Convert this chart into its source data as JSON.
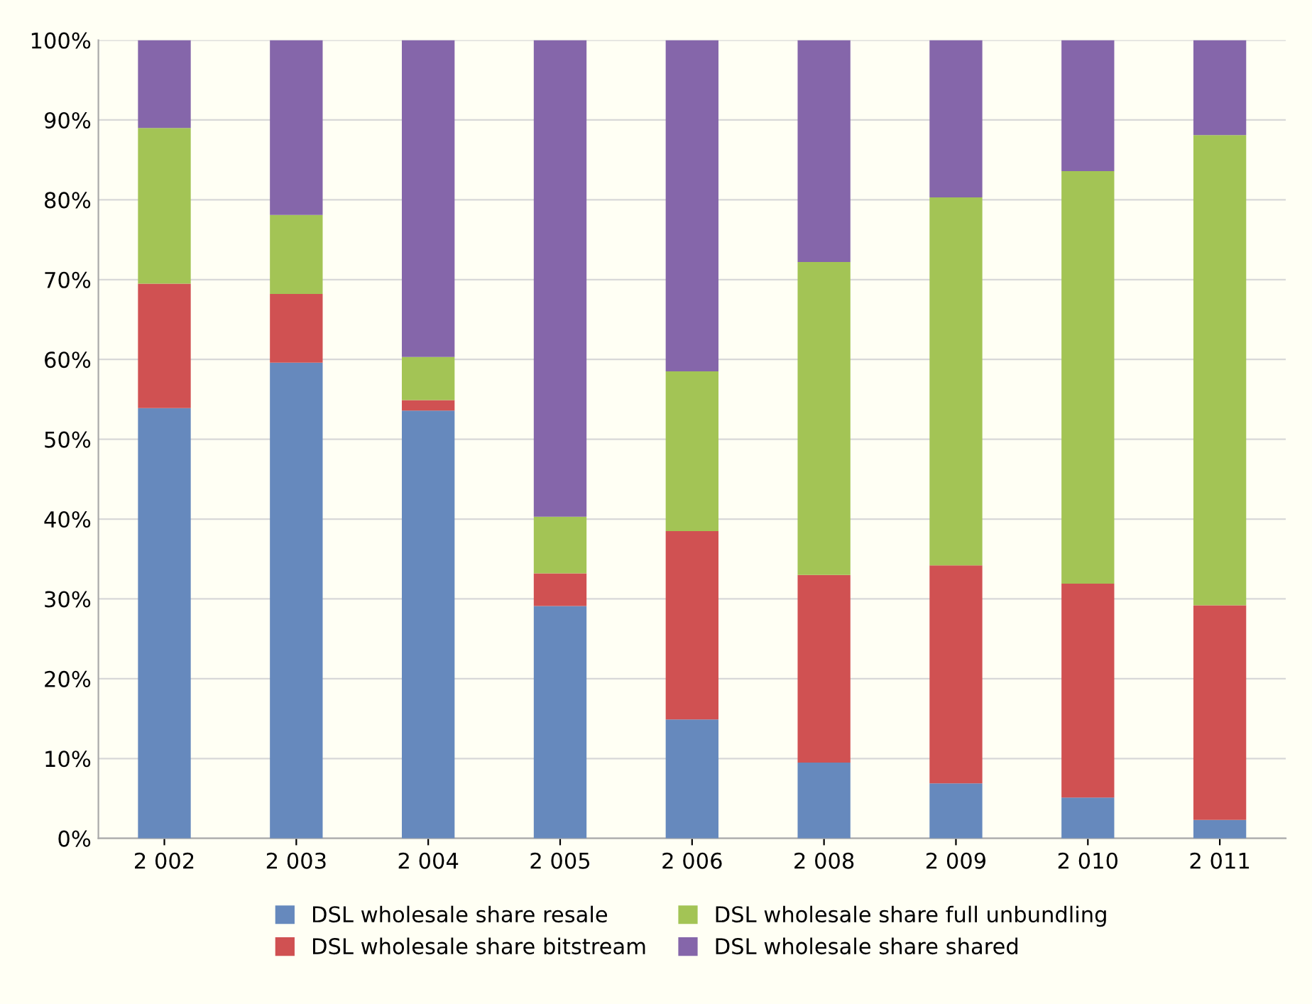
{
  "chart_data": {
    "type": "bar",
    "stacked": true,
    "categories": [
      "2 002",
      "2 003",
      "2 004",
      "2 005",
      "2 006",
      "2 008",
      "2 009",
      "2 010",
      "2 011"
    ],
    "series": [
      {
        "name": "DSL wholesale share resale",
        "color": "#6689bd",
        "values": [
          53.9,
          59.6,
          53.6,
          29.1,
          14.9,
          9.5,
          6.9,
          5.1,
          2.3
        ]
      },
      {
        "name": "DSL wholesale share bitstream",
        "color": "#d05152",
        "values": [
          15.6,
          8.6,
          1.3,
          4.1,
          23.6,
          23.5,
          27.3,
          26.8,
          26.9
        ]
      },
      {
        "name": "DSL wholesale share full unbundling",
        "color": "#a3c455",
        "values": [
          19.5,
          9.9,
          5.4,
          7.1,
          20.0,
          39.2,
          46.1,
          51.7,
          58.9
        ]
      },
      {
        "name": "DSL wholesale share shared",
        "color": "#8566aa",
        "values": [
          11.0,
          21.9,
          39.7,
          59.7,
          41.5,
          27.8,
          19.7,
          16.4,
          11.9
        ]
      }
    ],
    "ylim": [
      0,
      100
    ],
    "yticks": [
      {
        "value": 0,
        "label": "0%"
      },
      {
        "value": 10,
        "label": "10%"
      },
      {
        "value": 20,
        "label": "20%"
      },
      {
        "value": 30,
        "label": "30%"
      },
      {
        "value": 40,
        "label": "40%"
      },
      {
        "value": 50,
        "label": "50%"
      },
      {
        "value": 60,
        "label": "60%"
      },
      {
        "value": 70,
        "label": "70%"
      },
      {
        "value": 80,
        "label": "80%"
      },
      {
        "value": 90,
        "label": "90%"
      },
      {
        "value": 100,
        "label": "100%"
      }
    ],
    "grid": "y",
    "legend": "bottom"
  }
}
